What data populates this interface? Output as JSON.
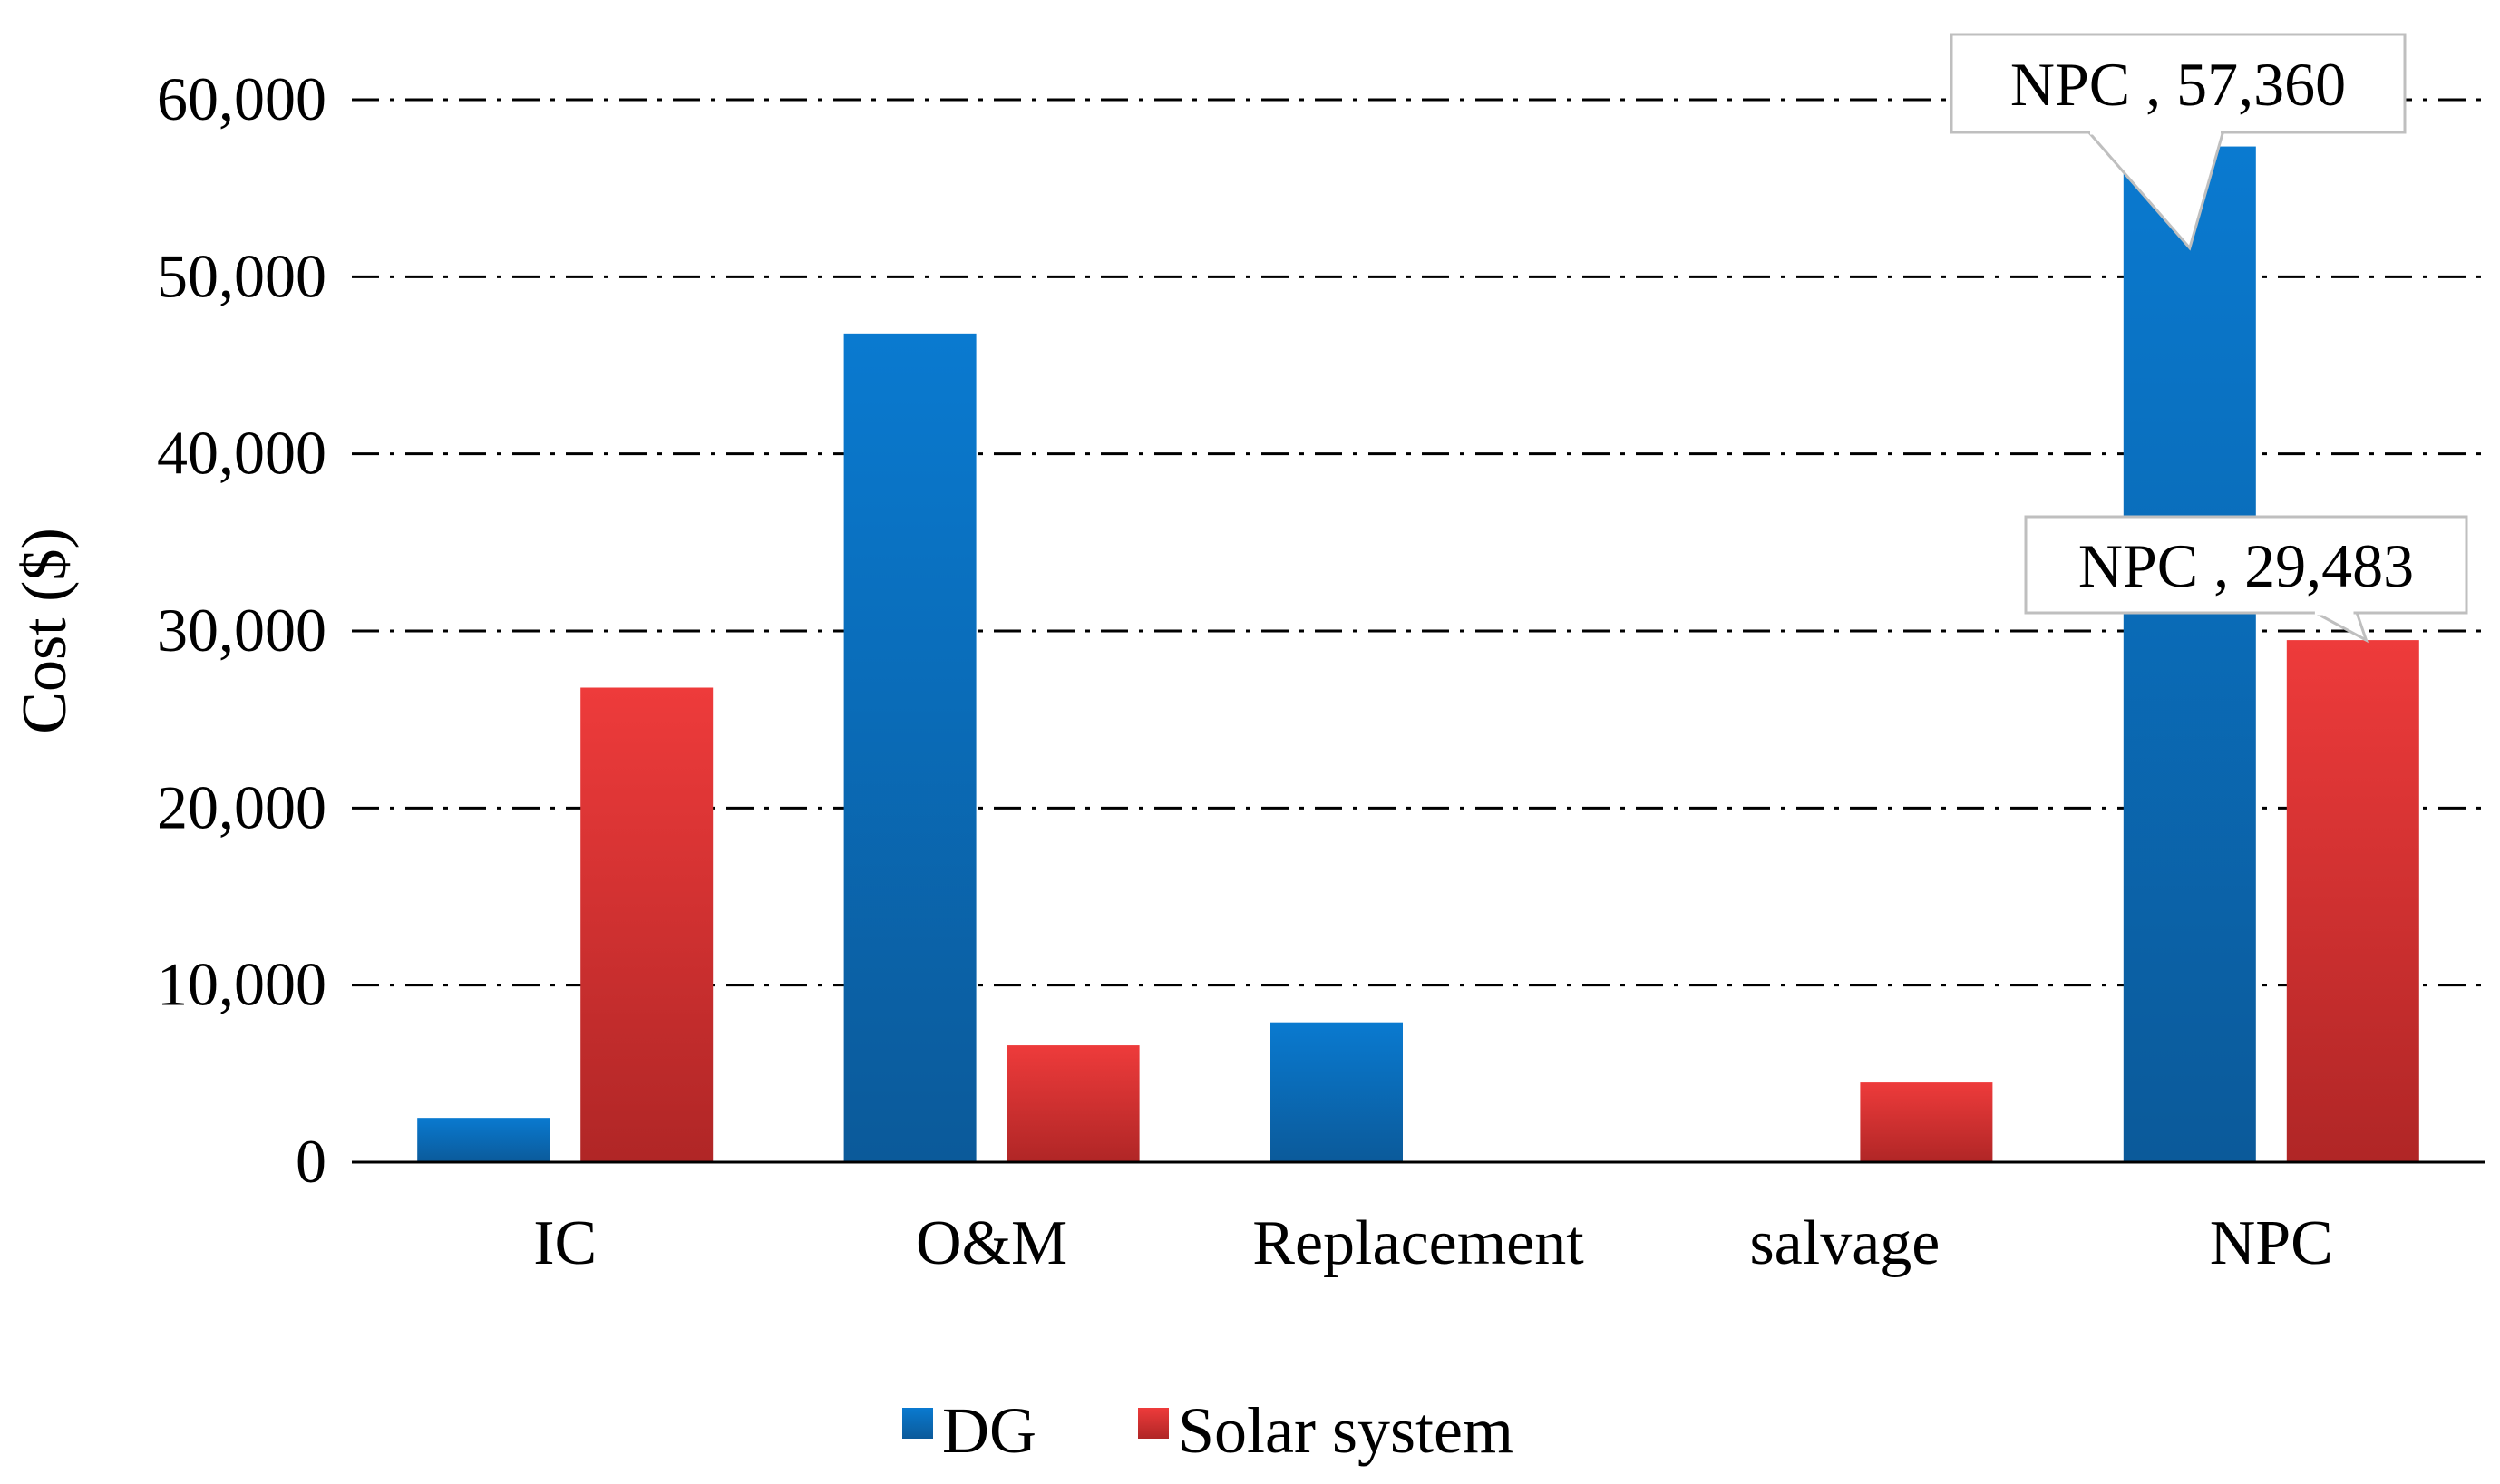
{
  "chart_data": {
    "type": "bar",
    "title": "",
    "xlabel": "",
    "ylabel": "Cost ($)",
    "ylim": [
      0,
      60000
    ],
    "yticks": [
      0,
      10000,
      20000,
      30000,
      40000,
      50000,
      60000
    ],
    "ytick_labels": [
      "0",
      "10,000",
      "20,000",
      "30,000",
      "40,000",
      "50,000",
      "60,000"
    ],
    "grid": "horizontal dash-dot",
    "legend_position": "bottom",
    "categories": [
      "IC",
      "O&M",
      "Replacement",
      "salvage",
      "NPC"
    ],
    "series": [
      {
        "name": "DG",
        "color": "#0070c0",
        "values": [
          2500,
          46800,
          7900,
          0,
          57360
        ]
      },
      {
        "name": "Solar system",
        "color": "#e03030",
        "values": [
          26800,
          6600,
          0,
          4500,
          29483
        ]
      }
    ],
    "annotations": [
      {
        "series": 0,
        "category": 4,
        "text": "NPC , 57,360"
      },
      {
        "series": 1,
        "category": 4,
        "text": "NPC , 29,483"
      }
    ]
  }
}
